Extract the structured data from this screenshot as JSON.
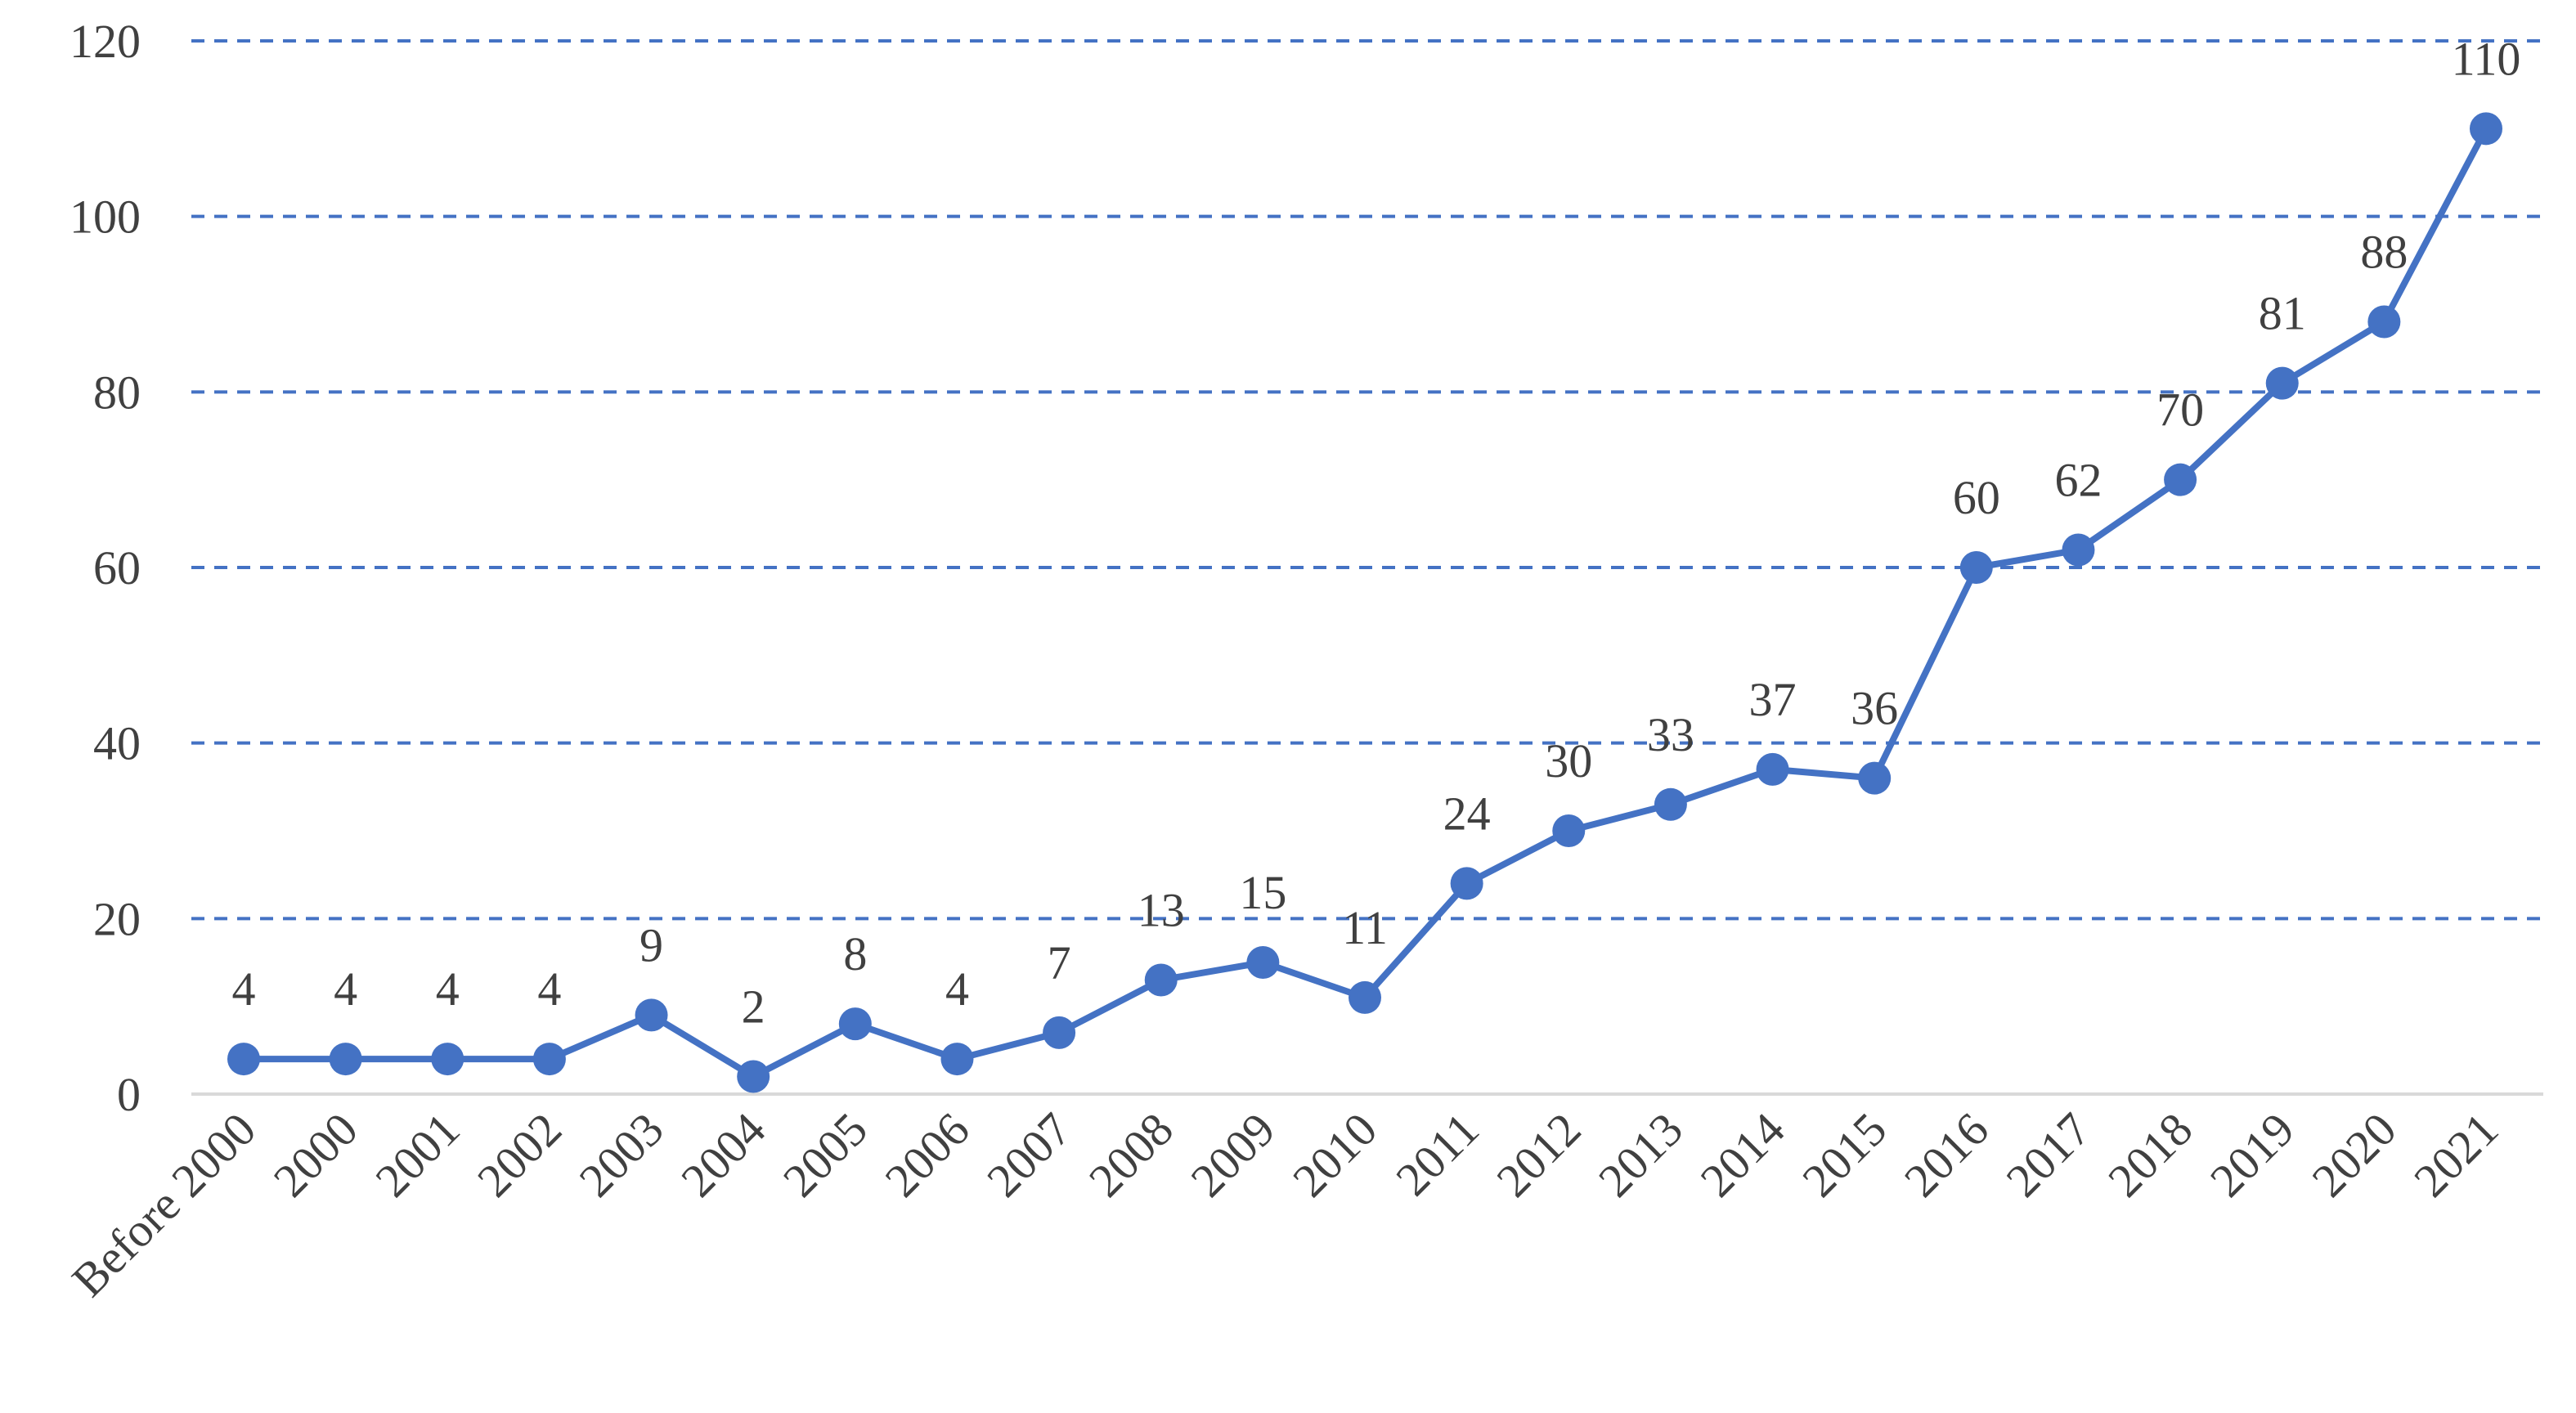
{
  "chart_data": {
    "type": "line",
    "title": "",
    "xlabel": "",
    "ylabel": "",
    "categories": [
      "Before 2000",
      "2000",
      "2001",
      "2002",
      "2003",
      "2004",
      "2005",
      "2006",
      "2007",
      "2008",
      "2009",
      "2010",
      "2011",
      "2012",
      "2013",
      "2014",
      "2015",
      "2016",
      "2017",
      "2018",
      "2019",
      "2020",
      "2021"
    ],
    "series": [
      {
        "values": [
          4,
          4,
          4,
          4,
          9,
          2,
          8,
          4,
          7,
          13,
          15,
          11,
          24,
          30,
          33,
          37,
          36,
          60,
          62,
          70,
          81,
          88,
          110
        ]
      }
    ],
    "ylim": [
      0,
      120
    ],
    "yticks": [
      0,
      20,
      40,
      60,
      80,
      100,
      120
    ],
    "grid": true,
    "grid_style": "dashed",
    "legend": "none",
    "data_labels": true,
    "series_color": "#4472C4",
    "marker": "circle"
  }
}
